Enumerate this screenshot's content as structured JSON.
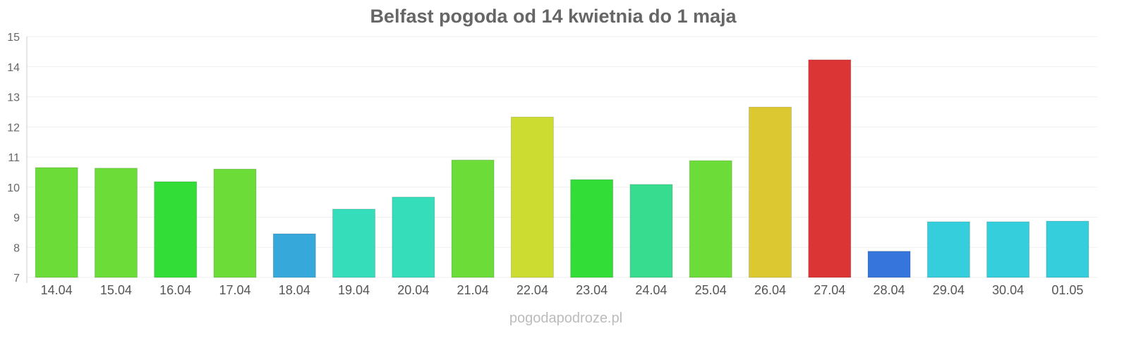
{
  "chart_data": {
    "type": "bar",
    "title": "Belfast pogoda od 14 kwietnia do 1 maja",
    "xlabel": "",
    "ylabel": "",
    "ylim": [
      7,
      15
    ],
    "yticks": [
      7,
      8,
      9,
      10,
      11,
      12,
      13,
      14,
      15
    ],
    "grid": true,
    "categories": [
      "14.04",
      "15.04",
      "16.04",
      "17.04",
      "18.04",
      "19.04",
      "20.04",
      "21.04",
      "22.04",
      "23.04",
      "24.04",
      "25.04",
      "26.04",
      "27.04",
      "28.04",
      "29.04",
      "30.04",
      "01.05"
    ],
    "values": [
      10.65,
      10.63,
      10.18,
      10.6,
      8.45,
      9.27,
      9.67,
      10.9,
      12.33,
      10.25,
      10.09,
      10.88,
      12.66,
      14.23,
      7.87,
      8.85,
      8.85,
      8.87
    ],
    "colors": [
      "#6bdc38",
      "#6bdc38",
      "#33dd38",
      "#6bdc38",
      "#36a8da",
      "#35ddbb",
      "#35ddbb",
      "#6bdc38",
      "#cddc30",
      "#33dd38",
      "#37dc8e",
      "#6bdc38",
      "#dcc932",
      "#dc3535",
      "#3575dc",
      "#35cedc",
      "#35cedc",
      "#35cedc"
    ]
  },
  "footer": "pogodapodroze.pl"
}
